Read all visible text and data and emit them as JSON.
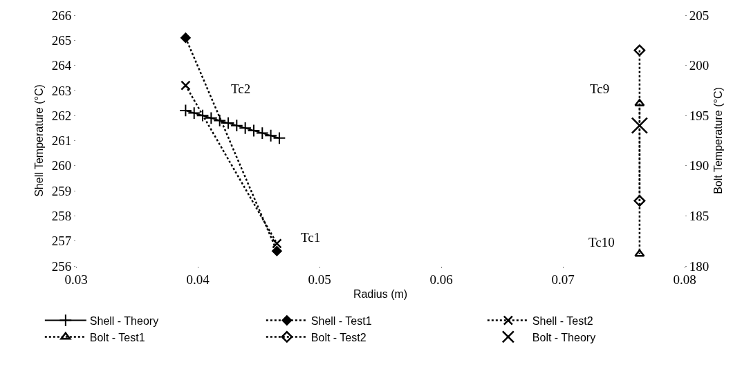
{
  "chart_data": {
    "type": "line",
    "xlabel": "Radius (m)",
    "ylabel": "Shell Temperature (°C)",
    "y2label": "Bolt Temperature (°C)",
    "xlim": [
      0.03,
      0.08
    ],
    "xticks": [
      0.03,
      0.04,
      0.05,
      0.06,
      0.07,
      0.08
    ],
    "ylim": [
      256,
      266
    ],
    "yticks": [
      256,
      257,
      258,
      259,
      260,
      261,
      262,
      263,
      264,
      265,
      266
    ],
    "y2lim": [
      180,
      205
    ],
    "y2ticks": [
      180,
      185,
      190,
      195,
      200,
      205
    ],
    "legend": "bottom",
    "series": [
      {
        "name": "Shell - Theory",
        "color": "#000000",
        "marker": "plus",
        "line_style": "solid",
        "x": [
          0.039,
          0.0397,
          0.0404,
          0.0411,
          0.0418,
          0.0425,
          0.0432,
          0.0439,
          0.0446,
          0.0453,
          0.046,
          0.0467
        ],
        "values": [
          262.2,
          262.1,
          262.0,
          261.9,
          261.8,
          261.7,
          261.6,
          261.5,
          261.4,
          261.3,
          261.2,
          261.1
        ]
      },
      {
        "name": "Shell - Test1",
        "color": "#000000",
        "marker": "diamond",
        "line_style": "dotted",
        "x": [
          0.039,
          0.0465
        ],
        "values": [
          265.1,
          256.6
        ]
      },
      {
        "name": "Shell - Test2",
        "color": "#000000",
        "marker": "cross",
        "line_style": "dotted",
        "x": [
          0.039,
          0.0465
        ],
        "values": [
          263.2,
          256.9
        ]
      },
      {
        "name": "Bolt - Test1",
        "color": "#000000",
        "marker": "triangle-open",
        "line_style": "dotted",
        "axis": "y2",
        "x": [
          0.0763,
          0.0763
        ],
        "values": [
          196.2,
          181.2
        ]
      },
      {
        "name": "Bolt - Test2",
        "color": "#000000",
        "marker": "diamond-open",
        "line_style": "dotted",
        "axis": "y2",
        "x": [
          0.0763,
          0.0763
        ],
        "values": [
          201.5,
          186.5
        ]
      },
      {
        "name": "Bolt - Theory",
        "color": "#000000",
        "marker": "cross-large",
        "line_style": "none",
        "axis": "y2",
        "x": [
          0.0763
        ],
        "values": [
          194.0
        ]
      }
    ],
    "annotations": [
      "Tc2",
      "Tc1",
      "Tc9",
      "Tc10"
    ]
  }
}
